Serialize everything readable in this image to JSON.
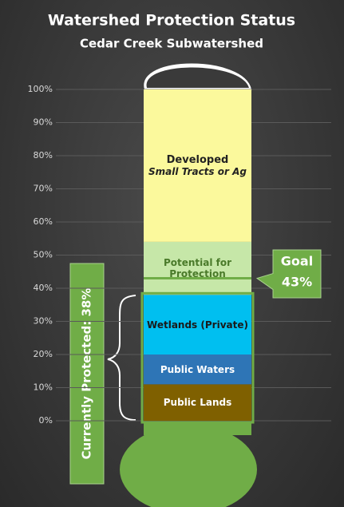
{
  "chart_data": {
    "type": "stacked_bar",
    "title": "Watershed Protection Status",
    "subtitle": "Cedar Creek Subwatershed",
    "ylim": [
      0,
      100
    ],
    "yticks": [
      {
        "value": 0,
        "label": "0%"
      },
      {
        "value": 10,
        "label": "10%"
      },
      {
        "value": 20,
        "label": "20%"
      },
      {
        "value": 30,
        "label": "30%"
      },
      {
        "value": 40,
        "label": "40%"
      },
      {
        "value": 50,
        "label": "50%"
      },
      {
        "value": 60,
        "label": "60%"
      },
      {
        "value": 70,
        "label": "70%"
      },
      {
        "value": 80,
        "label": "80%"
      },
      {
        "value": 90,
        "label": "90%"
      },
      {
        "value": 100,
        "label": "100%"
      }
    ],
    "grid": true,
    "series": [
      {
        "name": "Public Lands",
        "color": "#7f6000",
        "values": [
          11
        ]
      },
      {
        "name": "Public Waters",
        "color": "#2e75b6",
        "values": [
          9
        ]
      },
      {
        "name": "Wetlands (Private)",
        "color": "#00bff0",
        "values": [
          18
        ]
      },
      {
        "name": "Potential for Protection",
        "color": "#c6e7a8",
        "values": [
          16
        ]
      },
      {
        "name": "Developed",
        "color": "#fbf99c",
        "values": [
          46
        ]
      }
    ],
    "annotations": [
      "Small Tracts or Ag",
      "Currently Protected: 38%"
    ],
    "goal": {
      "label": "Goal",
      "value": 43,
      "value_label": "43%",
      "color": "#70ad47"
    }
  }
}
